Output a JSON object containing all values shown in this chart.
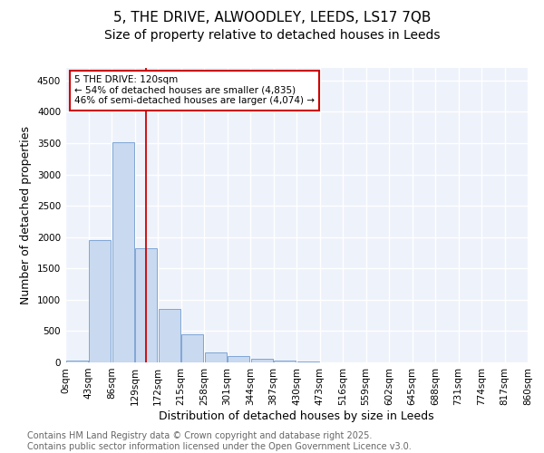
{
  "title1": "5, THE DRIVE, ALWOODLEY, LEEDS, LS17 7QB",
  "title2": "Size of property relative to detached houses in Leeds",
  "xlabel": "Distribution of detached houses by size in Leeds",
  "ylabel": "Number of detached properties",
  "bar_values": [
    30,
    1950,
    3520,
    1820,
    860,
    450,
    160,
    100,
    65,
    35,
    15,
    5,
    2,
    1,
    0,
    0,
    0,
    0,
    0,
    0
  ],
  "bin_labels": [
    "0sqm",
    "43sqm",
    "86sqm",
    "129sqm",
    "172sqm",
    "215sqm",
    "258sqm",
    "301sqm",
    "344sqm",
    "387sqm",
    "430sqm",
    "473sqm",
    "516sqm",
    "559sqm",
    "602sqm",
    "645sqm",
    "688sqm",
    "731sqm",
    "774sqm",
    "817sqm",
    "860sqm"
  ],
  "bar_color": "#c8d9f0",
  "bar_edge_color": "#5b8cc8",
  "vline_x": 3.0,
  "vline_color": "#cc0000",
  "annotation_text": "5 THE DRIVE: 120sqm\n← 54% of detached houses are smaller (4,835)\n46% of semi-detached houses are larger (4,074) →",
  "annotation_box_color": "#ffffff",
  "annotation_box_edge": "#cc0000",
  "ylim": [
    0,
    4700
  ],
  "yticks": [
    0,
    500,
    1000,
    1500,
    2000,
    2500,
    3000,
    3500,
    4000,
    4500
  ],
  "background_color": "#eef2fb",
  "grid_color": "#ffffff",
  "footer_text": "Contains HM Land Registry data © Crown copyright and database right 2025.\nContains public sector information licensed under the Open Government Licence v3.0.",
  "title1_fontsize": 11,
  "title2_fontsize": 10,
  "axis_fontsize": 9,
  "tick_fontsize": 7.5,
  "footer_fontsize": 7
}
